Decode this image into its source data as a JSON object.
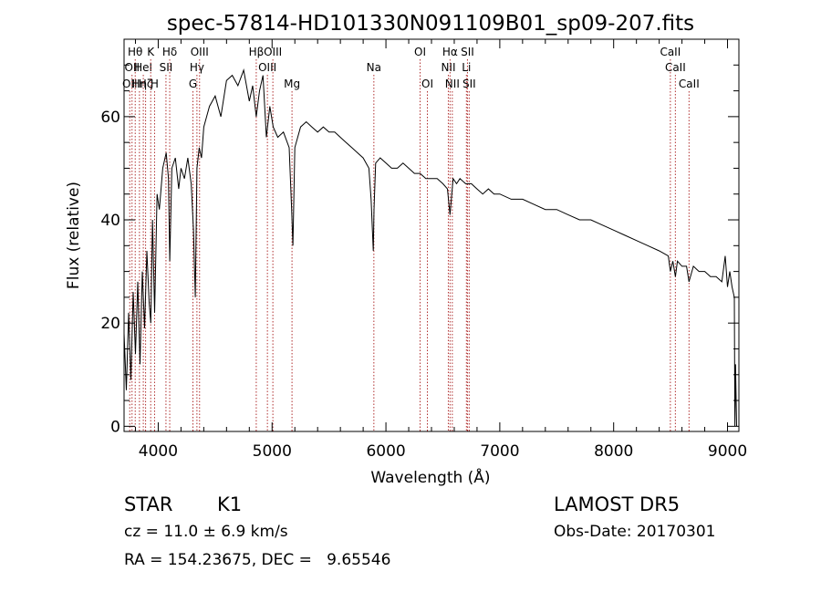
{
  "chart_data": {
    "type": "line",
    "title": "spec-57814-HD101330N091109B01_sp09-207.fits",
    "xlabel": "Wavelength (Å)",
    "ylabel": "Flux (relative)",
    "xlim": [
      3700,
      9100
    ],
    "ylim": [
      -1,
      75
    ],
    "xticks": [
      4000,
      5000,
      6000,
      7000,
      8000,
      9000
    ],
    "yticks": [
      0,
      20,
      40,
      60
    ],
    "grid": false,
    "line_color": "#000000",
    "marker_color": "#b03030",
    "series": [
      {
        "x": [
          3700,
          3720,
          3740,
          3760,
          3780,
          3800,
          3820,
          3840,
          3860,
          3880,
          3900,
          3920,
          3935,
          3950,
          3968,
          3990,
          4010,
          4040,
          4070,
          4090,
          4101,
          4120,
          4150,
          4180,
          4200,
          4230,
          4260,
          4290,
          4310,
          4326,
          4340,
          4360,
          4380,
          4400,
          4450,
          4500,
          4550,
          4600,
          4650,
          4700,
          4750,
          4800,
          4830,
          4861,
          4890,
          4920,
          4950,
          4980,
          5010,
          5050,
          5100,
          5150,
          5172,
          5183,
          5200,
          5250,
          5300,
          5350,
          5400,
          5450,
          5500,
          5550,
          5600,
          5650,
          5700,
          5750,
          5800,
          5850,
          5870,
          5889,
          5895,
          5910,
          5950,
          6000,
          6050,
          6100,
          6150,
          6200,
          6250,
          6300,
          6350,
          6400,
          6450,
          6500,
          6540,
          6563,
          6590,
          6620,
          6650,
          6700,
          6750,
          6800,
          6850,
          6900,
          6950,
          7000,
          7100,
          7200,
          7300,
          7400,
          7500,
          7600,
          7700,
          7800,
          7900,
          8000,
          8100,
          8200,
          8300,
          8400,
          8480,
          8498,
          8520,
          8542,
          8560,
          8600,
          8640,
          8662,
          8700,
          8750,
          8800,
          8850,
          8900,
          8950,
          8980,
          9000,
          9020,
          9040,
          9060,
          9065,
          9070,
          9080
        ],
        "y": [
          18,
          7,
          22,
          9,
          26,
          14,
          28,
          12,
          30,
          19,
          34,
          24,
          20,
          40,
          22,
          45,
          42,
          50,
          53,
          48,
          32,
          50,
          52,
          46,
          50,
          48,
          52,
          47,
          38,
          25,
          50,
          54,
          52,
          58,
          62,
          64,
          60,
          67,
          68,
          66,
          69,
          63,
          66,
          60,
          65,
          68,
          56,
          62,
          58,
          56,
          57,
          54,
          42,
          35,
          54,
          58,
          59,
          58,
          57,
          58,
          57,
          57,
          56,
          55,
          54,
          53,
          52,
          50,
          44,
          34,
          42,
          51,
          52,
          51,
          50,
          50,
          51,
          50,
          49,
          49,
          48,
          48,
          48,
          47,
          46,
          41,
          48,
          47,
          48,
          47,
          47,
          46,
          45,
          46,
          45,
          45,
          44,
          44,
          43,
          42,
          42,
          41,
          40,
          40,
          39,
          38,
          37,
          36,
          35,
          34,
          33,
          30,
          32,
          29,
          32,
          31,
          31,
          28,
          31,
          30,
          30,
          29,
          29,
          28,
          33,
          27,
          30,
          27,
          25,
          0,
          12,
          0
        ]
      }
    ],
    "line_markers": [
      {
        "x": 3750,
        "label": "OII",
        "row": 2
      },
      {
        "x": 3770,
        "label": "OII",
        "row": 1
      },
      {
        "x": 3798,
        "label": "Hθ",
        "row": 0
      },
      {
        "x": 3835,
        "label": "Hη",
        "row": 2
      },
      {
        "x": 3869,
        "label": "HeI",
        "row": 1
      },
      {
        "x": 3889,
        "label": "Hζ",
        "row": 2
      },
      {
        "x": 3934,
        "label": "K",
        "row": 0
      },
      {
        "x": 3968,
        "label": "H",
        "row": 2
      },
      {
        "x": 4068,
        "label": "SII",
        "row": 1
      },
      {
        "x": 4101,
        "label": "Hδ",
        "row": 0
      },
      {
        "x": 4305,
        "label": "G",
        "row": 2
      },
      {
        "x": 4340,
        "label": "Hγ",
        "row": 1
      },
      {
        "x": 4363,
        "label": "OIII",
        "row": 0
      },
      {
        "x": 4861,
        "label": "Hβ",
        "row": 0
      },
      {
        "x": 4959,
        "label": "OIII",
        "row": 1
      },
      {
        "x": 5007,
        "label": "OIII",
        "row": 0
      },
      {
        "x": 5175,
        "label": "Mg",
        "row": 2
      },
      {
        "x": 5894,
        "label": "Na",
        "row": 1
      },
      {
        "x": 6300,
        "label": "OI",
        "row": 0
      },
      {
        "x": 6364,
        "label": "OI",
        "row": 2
      },
      {
        "x": 6548,
        "label": "NII",
        "row": 1
      },
      {
        "x": 6563,
        "label": "Hα",
        "row": 0
      },
      {
        "x": 6583,
        "label": "NII",
        "row": 2
      },
      {
        "x": 6707,
        "label": "Li",
        "row": 1
      },
      {
        "x": 6716,
        "label": "SII",
        "row": 0
      },
      {
        "x": 6731,
        "label": "SII",
        "row": 2
      },
      {
        "x": 8498,
        "label": "CaII",
        "row": 0
      },
      {
        "x": 8542,
        "label": "CaII",
        "row": 1
      },
      {
        "x": 8662,
        "label": "CaII",
        "row": 2
      }
    ]
  },
  "footer": {
    "object_class": "STAR",
    "subclass": "K1",
    "redshift_line": "cz = 11.0 ± 6.9 km/s",
    "coords_line": "RA = 154.23675, DEC =   9.65546",
    "survey": "LAMOST DR5",
    "obs_date_line": "Obs-Date: 20170301"
  }
}
